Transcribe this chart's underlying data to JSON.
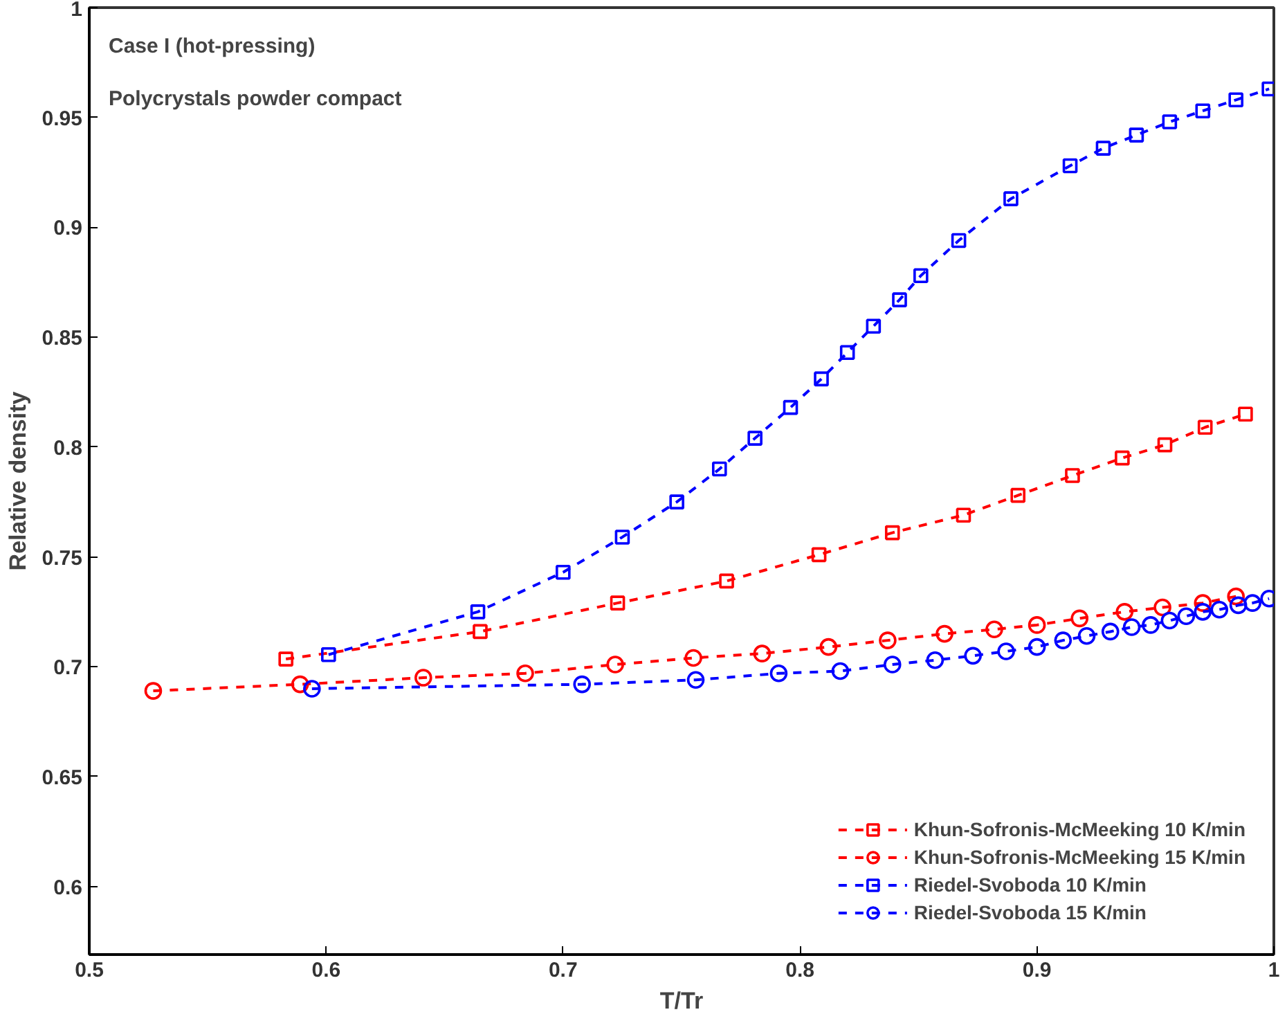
{
  "chart_data": {
    "type": "line",
    "xlabel": "T/Tr",
    "ylabel": "Relative density",
    "annotations": [
      "Case I (hot-pressing)",
      "Polycrystals powder compact"
    ],
    "xlim": [
      0.5,
      1
    ],
    "ylim": [
      0.569,
      1
    ],
    "xticks": [
      0.5,
      0.6,
      0.7,
      0.8,
      0.9,
      1
    ],
    "yticks": [
      0.6,
      0.65,
      0.7,
      0.75,
      0.8,
      0.85,
      0.9,
      0.95,
      1
    ],
    "grid": false,
    "legend": "bottom right",
    "line_style": "dashed",
    "series": [
      {
        "name": "Khun-Sofronis-McMeeking 10 K/min",
        "color": "#ff0000",
        "marker": "square",
        "x": [
          0.583,
          0.665,
          0.723,
          0.769,
          0.808,
          0.839,
          0.869,
          0.892,
          0.915,
          0.936,
          0.954,
          0.971,
          0.988
        ],
        "values": [
          0.7035,
          0.716,
          0.729,
          0.739,
          0.751,
          0.761,
          0.769,
          0.778,
          0.787,
          0.795,
          0.801,
          0.809,
          0.815
        ]
      },
      {
        "name": "Khun-Sofronis-McMeeking 15 K/min",
        "color": "#ff0000",
        "marker": "circle",
        "x": [
          0.527,
          0.589,
          0.641,
          0.684,
          0.722,
          0.755,
          0.784,
          0.812,
          0.837,
          0.861,
          0.882,
          0.9,
          0.918,
          0.937,
          0.953,
          0.97,
          0.984
        ],
        "values": [
          0.689,
          0.692,
          0.695,
          0.697,
          0.701,
          0.704,
          0.706,
          0.709,
          0.712,
          0.715,
          0.717,
          0.719,
          0.722,
          0.725,
          0.727,
          0.729,
          0.732
        ]
      },
      {
        "name": "Riedel-Svoboda 10 K/min",
        "color": "#0000ff",
        "marker": "square",
        "x": [
          0.601,
          0.664,
          0.7,
          0.725,
          0.748,
          0.766,
          0.781,
          0.796,
          0.809,
          0.82,
          0.831,
          0.842,
          0.851,
          0.867,
          0.889,
          0.914,
          0.928,
          0.942,
          0.956,
          0.97,
          0.984,
          0.998
        ],
        "values": [
          0.7055,
          0.725,
          0.743,
          0.759,
          0.775,
          0.79,
          0.804,
          0.818,
          0.831,
          0.843,
          0.855,
          0.867,
          0.878,
          0.894,
          0.913,
          0.928,
          0.936,
          0.942,
          0.948,
          0.953,
          0.958,
          0.963
        ]
      },
      {
        "name": "Riedel-Svoboda 15 K/min",
        "color": "#0000ff",
        "marker": "circle",
        "x": [
          0.594,
          0.708,
          0.756,
          0.791,
          0.817,
          0.839,
          0.857,
          0.873,
          0.887,
          0.9,
          0.911,
          0.921,
          0.931,
          0.94,
          0.948,
          0.956,
          0.963,
          0.97,
          0.977,
          0.985,
          0.991,
          0.998
        ],
        "values": [
          0.69,
          0.692,
          0.694,
          0.697,
          0.698,
          0.701,
          0.703,
          0.705,
          0.707,
          0.709,
          0.712,
          0.714,
          0.716,
          0.718,
          0.719,
          0.721,
          0.723,
          0.725,
          0.726,
          0.728,
          0.729,
          0.731
        ]
      }
    ]
  }
}
